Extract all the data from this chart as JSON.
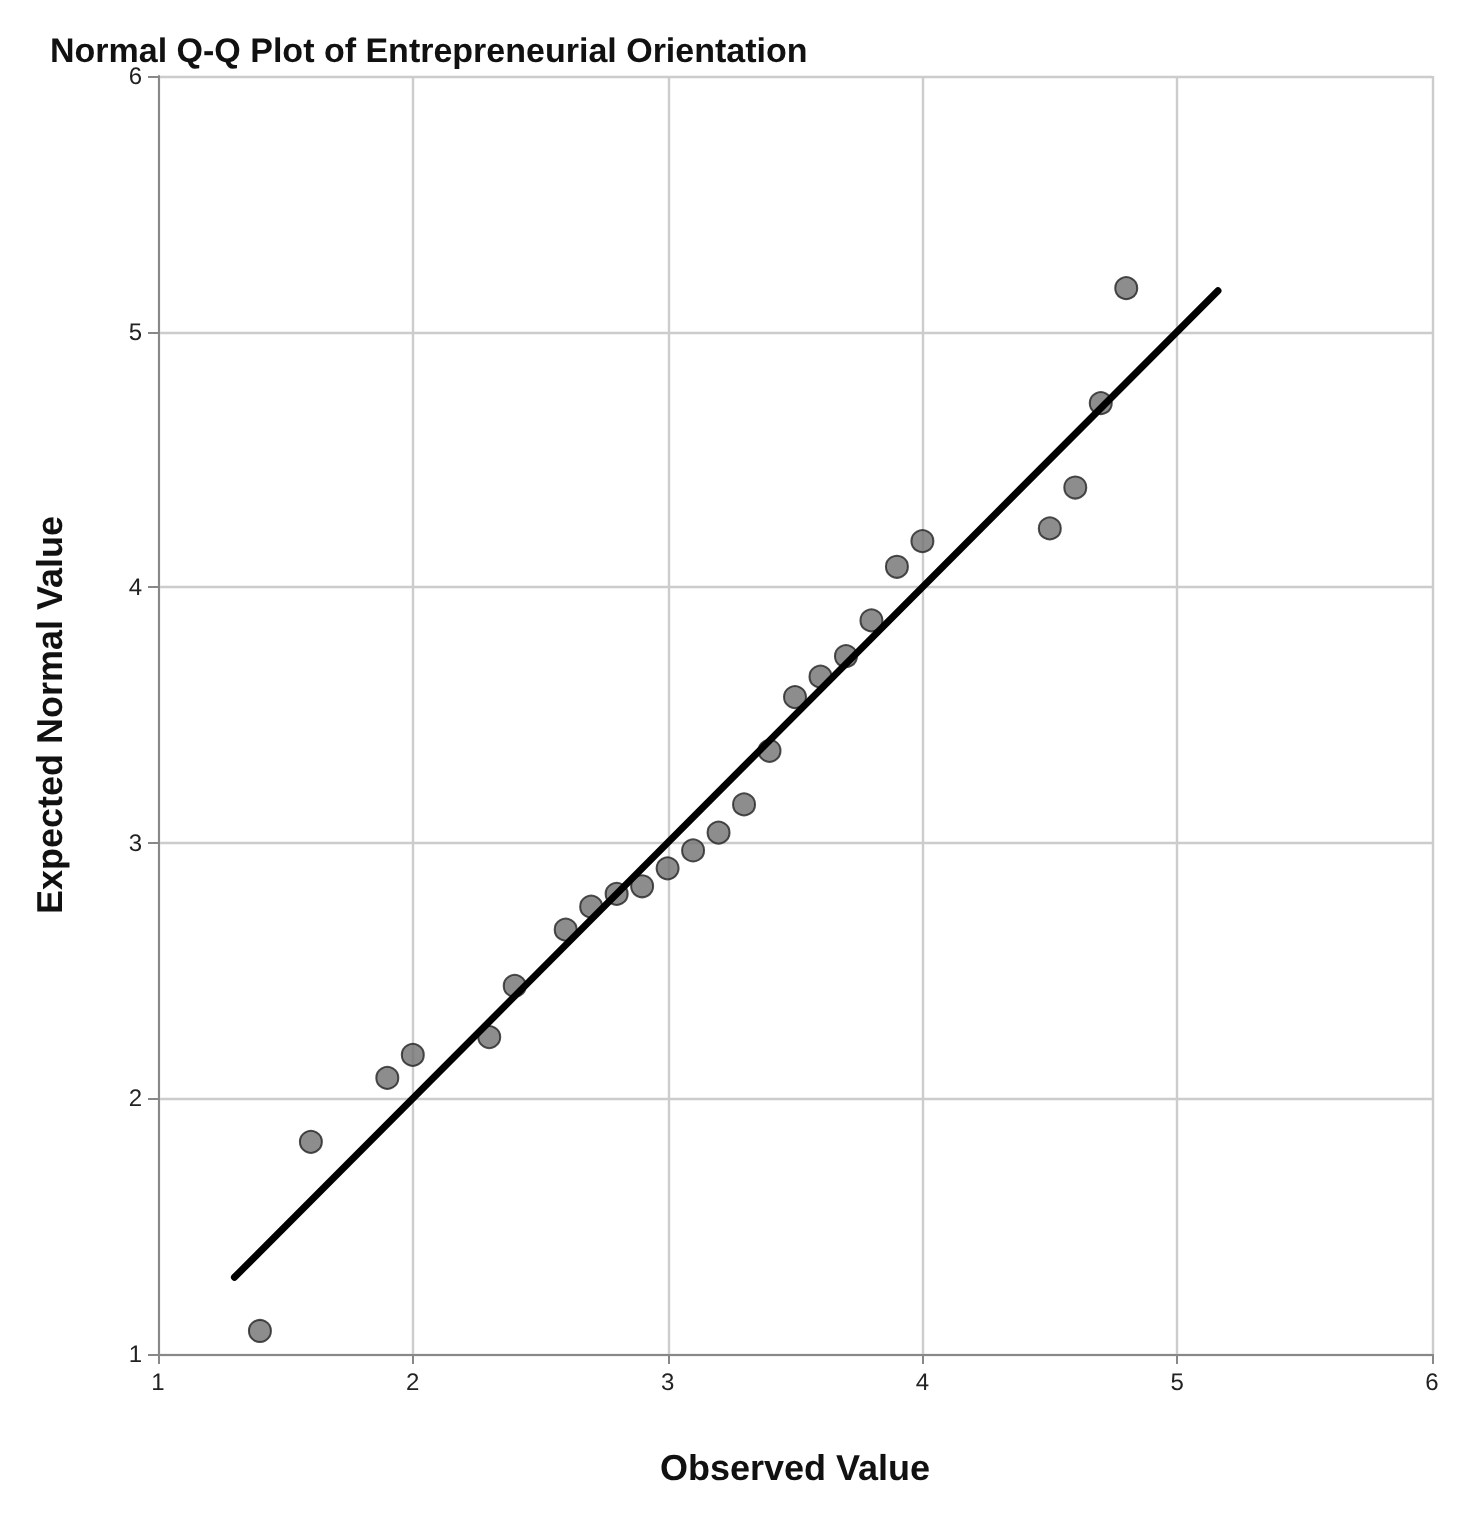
{
  "chart_data": {
    "type": "scatter",
    "title": "Normal Q-Q Plot of Entrepreneurial Orientation",
    "xlabel": "Observed Value",
    "ylabel": "Expected Normal Value",
    "x": [
      1.4,
      1.6,
      1.9,
      2.0,
      2.3,
      2.4,
      2.6,
      2.7,
      2.8,
      2.9,
      3.0,
      3.1,
      3.2,
      3.3,
      3.4,
      3.5,
      3.6,
      3.7,
      3.8,
      3.9,
      4.0,
      4.5,
      4.6,
      4.7,
      4.8
    ],
    "series": [
      {
        "color": "#707070",
        "marker": "circle",
        "values": [
          1.09,
          1.83,
          2.08,
          2.17,
          2.24,
          2.44,
          2.66,
          2.75,
          2.8,
          2.83,
          2.9,
          2.97,
          3.04,
          3.15,
          3.36,
          3.57,
          3.65,
          3.73,
          3.87,
          4.08,
          4.18,
          4.23,
          4.39,
          4.72,
          5.17
        ]
      },
      {
        "type": "line",
        "color": "#000000",
        "marker": "none",
        "line_style": "solid",
        "x": [
          1.3,
          5.16
        ],
        "values": [
          1.3,
          5.16
        ]
      }
    ],
    "xlim": [
      1,
      6
    ],
    "ylim": [
      1,
      6
    ],
    "xticks": [
      1,
      2,
      3,
      4,
      5,
      6
    ],
    "yticks": [
      1,
      2,
      3,
      4,
      5,
      6
    ],
    "grid": true
  }
}
